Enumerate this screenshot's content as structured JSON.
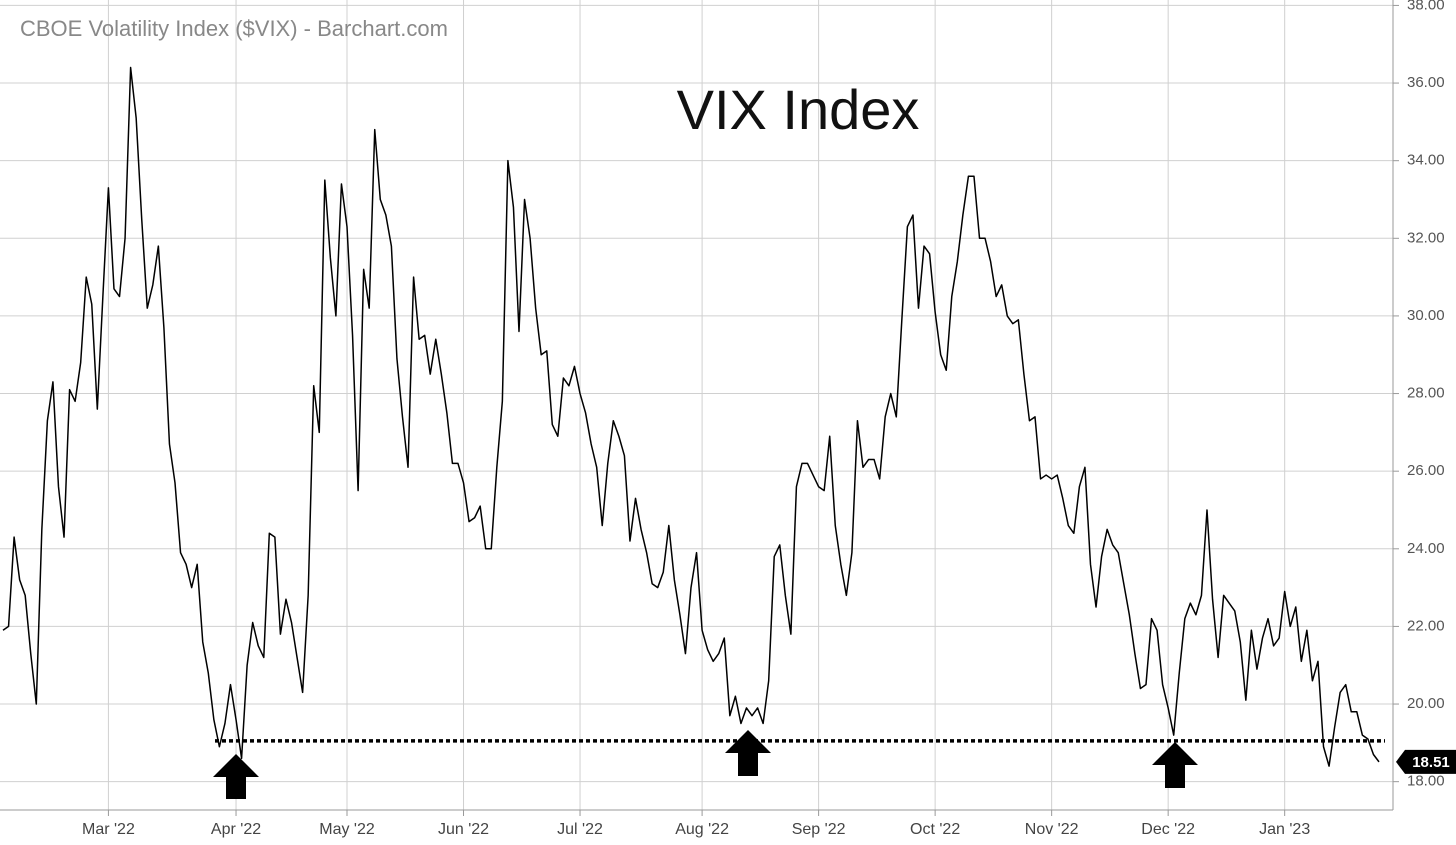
{
  "chart_data": {
    "type": "line",
    "title": "CBOE Volatility Index ($VIX) - Barchart.com",
    "annotation": "VIX Index",
    "categories": [
      null,
      null,
      null,
      null,
      null,
      null,
      null,
      null,
      null,
      null,
      null,
      null,
      null,
      null,
      null,
      null,
      null,
      null,
      null,
      "Mar '22",
      null,
      null,
      null,
      null,
      null,
      null,
      null,
      null,
      null,
      null,
      null,
      null,
      null,
      null,
      null,
      null,
      null,
      null,
      null,
      null,
      null,
      null,
      "Apr '22",
      null,
      null,
      null,
      null,
      null,
      null,
      null,
      null,
      null,
      null,
      null,
      null,
      null,
      null,
      null,
      null,
      null,
      null,
      null,
      "May '22",
      null,
      null,
      null,
      null,
      null,
      null,
      null,
      null,
      null,
      null,
      null,
      null,
      null,
      null,
      null,
      null,
      null,
      null,
      null,
      null,
      "Jun '22",
      null,
      null,
      null,
      null,
      null,
      null,
      null,
      null,
      null,
      null,
      null,
      null,
      null,
      null,
      null,
      null,
      null,
      null,
      null,
      null,
      "Jul '22",
      null,
      null,
      null,
      null,
      null,
      null,
      null,
      null,
      null,
      null,
      null,
      null,
      null,
      null,
      null,
      null,
      null,
      null,
      null,
      null,
      null,
      "Aug '22",
      null,
      null,
      null,
      null,
      null,
      null,
      null,
      null,
      null,
      null,
      null,
      null,
      null,
      null,
      null,
      null,
      null,
      null,
      null,
      null,
      "Sep '22",
      null,
      null,
      null,
      null,
      null,
      null,
      null,
      null,
      null,
      null,
      null,
      null,
      null,
      null,
      null,
      null,
      null,
      null,
      null,
      null,
      "Oct '22",
      null,
      null,
      null,
      null,
      null,
      null,
      null,
      null,
      null,
      null,
      null,
      null,
      null,
      null,
      null,
      null,
      null,
      null,
      null,
      null,
      "Nov '22",
      null,
      null,
      null,
      null,
      null,
      null,
      null,
      null,
      null,
      null,
      null,
      null,
      null,
      null,
      null,
      null,
      null,
      null,
      null,
      null,
      "Dec '22",
      null,
      null,
      null,
      null,
      null,
      null,
      null,
      null,
      null,
      null,
      null,
      null,
      null,
      null,
      null,
      null,
      null,
      null,
      null,
      null,
      "Jan '23",
      null,
      null,
      null,
      null,
      null,
      null,
      null,
      null,
      null,
      null,
      null,
      null,
      null,
      null,
      null,
      null,
      null
    ],
    "series": [
      {
        "name": "VIX",
        "color": "#000000",
        "values": [
          21.9,
          22.0,
          24.3,
          23.2,
          22.8,
          21.3,
          20.0,
          24.5,
          27.3,
          28.3,
          25.6,
          24.3,
          28.1,
          27.8,
          28.8,
          31.0,
          30.3,
          27.6,
          30.5,
          33.3,
          30.7,
          30.5,
          32.0,
          36.4,
          35.1,
          32.5,
          30.2,
          30.8,
          31.8,
          29.7,
          26.7,
          25.7,
          23.9,
          23.6,
          23.0,
          23.6,
          21.6,
          20.8,
          19.6,
          18.9,
          19.5,
          20.5,
          19.6,
          18.6,
          21.0,
          22.1,
          21.5,
          21.2,
          24.4,
          24.3,
          21.8,
          22.7,
          22.1,
          21.2,
          20.3,
          22.8,
          28.2,
          27.0,
          33.5,
          31.5,
          30.0,
          33.4,
          32.3,
          29.5,
          25.5,
          31.2,
          30.2,
          34.8,
          33.0,
          32.6,
          31.8,
          28.9,
          27.4,
          26.1,
          31.0,
          29.4,
          29.5,
          28.5,
          29.4,
          28.5,
          27.5,
          26.2,
          26.2,
          25.7,
          24.7,
          24.8,
          25.1,
          24.0,
          24.0,
          26.1,
          27.8,
          34.0,
          32.8,
          29.6,
          33.0,
          32.0,
          30.2,
          29.0,
          29.1,
          27.2,
          26.9,
          28.4,
          28.2,
          28.7,
          28.0,
          27.5,
          26.7,
          26.1,
          24.6,
          26.2,
          27.3,
          26.9,
          26.4,
          24.2,
          25.3,
          24.5,
          23.9,
          23.1,
          23.0,
          23.4,
          24.6,
          23.2,
          22.3,
          21.3,
          23.0,
          23.9,
          21.9,
          21.4,
          21.1,
          21.3,
          21.7,
          19.7,
          20.2,
          19.5,
          19.9,
          19.7,
          19.9,
          19.5,
          20.6,
          23.8,
          24.1,
          22.8,
          21.8,
          25.6,
          26.2,
          26.2,
          25.9,
          25.6,
          25.5,
          26.9,
          24.6,
          23.6,
          22.8,
          23.9,
          27.3,
          26.1,
          26.3,
          26.3,
          25.8,
          27.4,
          28.0,
          27.4,
          29.9,
          32.3,
          32.6,
          30.2,
          31.8,
          31.6,
          30.1,
          29.0,
          28.6,
          30.5,
          31.4,
          32.6,
          33.6,
          33.6,
          32.0,
          32.0,
          31.4,
          30.5,
          30.8,
          30.0,
          29.8,
          29.9,
          28.5,
          27.3,
          27.4,
          25.8,
          25.9,
          25.8,
          25.9,
          25.3,
          24.6,
          24.4,
          25.6,
          26.1,
          23.6,
          22.5,
          23.8,
          24.5,
          24.1,
          23.9,
          23.1,
          22.3,
          21.3,
          20.4,
          20.5,
          22.2,
          21.9,
          20.5,
          19.9,
          19.2,
          20.8,
          22.2,
          22.6,
          22.3,
          22.8,
          25.0,
          22.7,
          21.2,
          22.8,
          22.6,
          22.4,
          21.6,
          20.1,
          21.9,
          20.9,
          21.7,
          22.2,
          21.5,
          21.7,
          22.9,
          22.0,
          22.5,
          21.1,
          21.9,
          20.6,
          21.1,
          18.9,
          18.4,
          19.4,
          20.3,
          20.5,
          19.8,
          19.8,
          19.2,
          19.1,
          18.7,
          18.51
        ]
      }
    ],
    "support_level": 19.05,
    "ylim": [
      17.27,
      38.14
    ],
    "yticks": [
      {
        "value": 18,
        "label": "18.00"
      },
      {
        "value": 20,
        "label": "20.00"
      },
      {
        "value": 22,
        "label": "22.00"
      },
      {
        "value": 24,
        "label": "24.00"
      },
      {
        "value": 26,
        "label": "26.00"
      },
      {
        "value": 28,
        "label": "28.00"
      },
      {
        "value": 30,
        "label": "30.00"
      },
      {
        "value": 32,
        "label": "32.00"
      },
      {
        "value": 34,
        "label": "34.00"
      },
      {
        "value": 36,
        "label": "36.00"
      },
      {
        "value": 38,
        "label": "38.00"
      }
    ],
    "grid": true
  }
}
